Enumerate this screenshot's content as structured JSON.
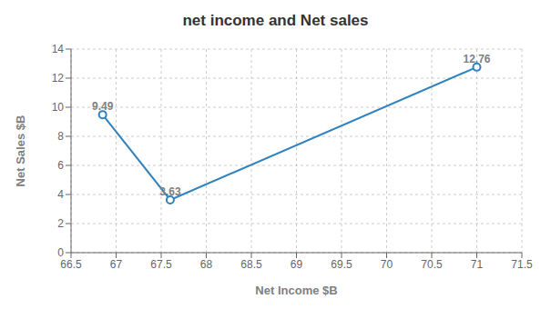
{
  "chart_data": {
    "type": "line",
    "title": "net income and Net sales",
    "x_label": "Net Income $B",
    "y_label": "Net Sales $B",
    "x": [
      66.85,
      67.6,
      71.0
    ],
    "values": [
      9.49,
      3.63,
      12.76
    ],
    "xlim": [
      66.5,
      71.5
    ],
    "xticks": [
      66.5,
      67,
      67.5,
      68,
      68.5,
      69,
      69.5,
      70,
      70.5,
      71,
      71.5
    ],
    "ylim": [
      0,
      14
    ],
    "yticks": [
      0,
      2,
      4,
      6,
      8,
      10,
      12,
      14
    ],
    "grid": true,
    "data_labels": true
  }
}
